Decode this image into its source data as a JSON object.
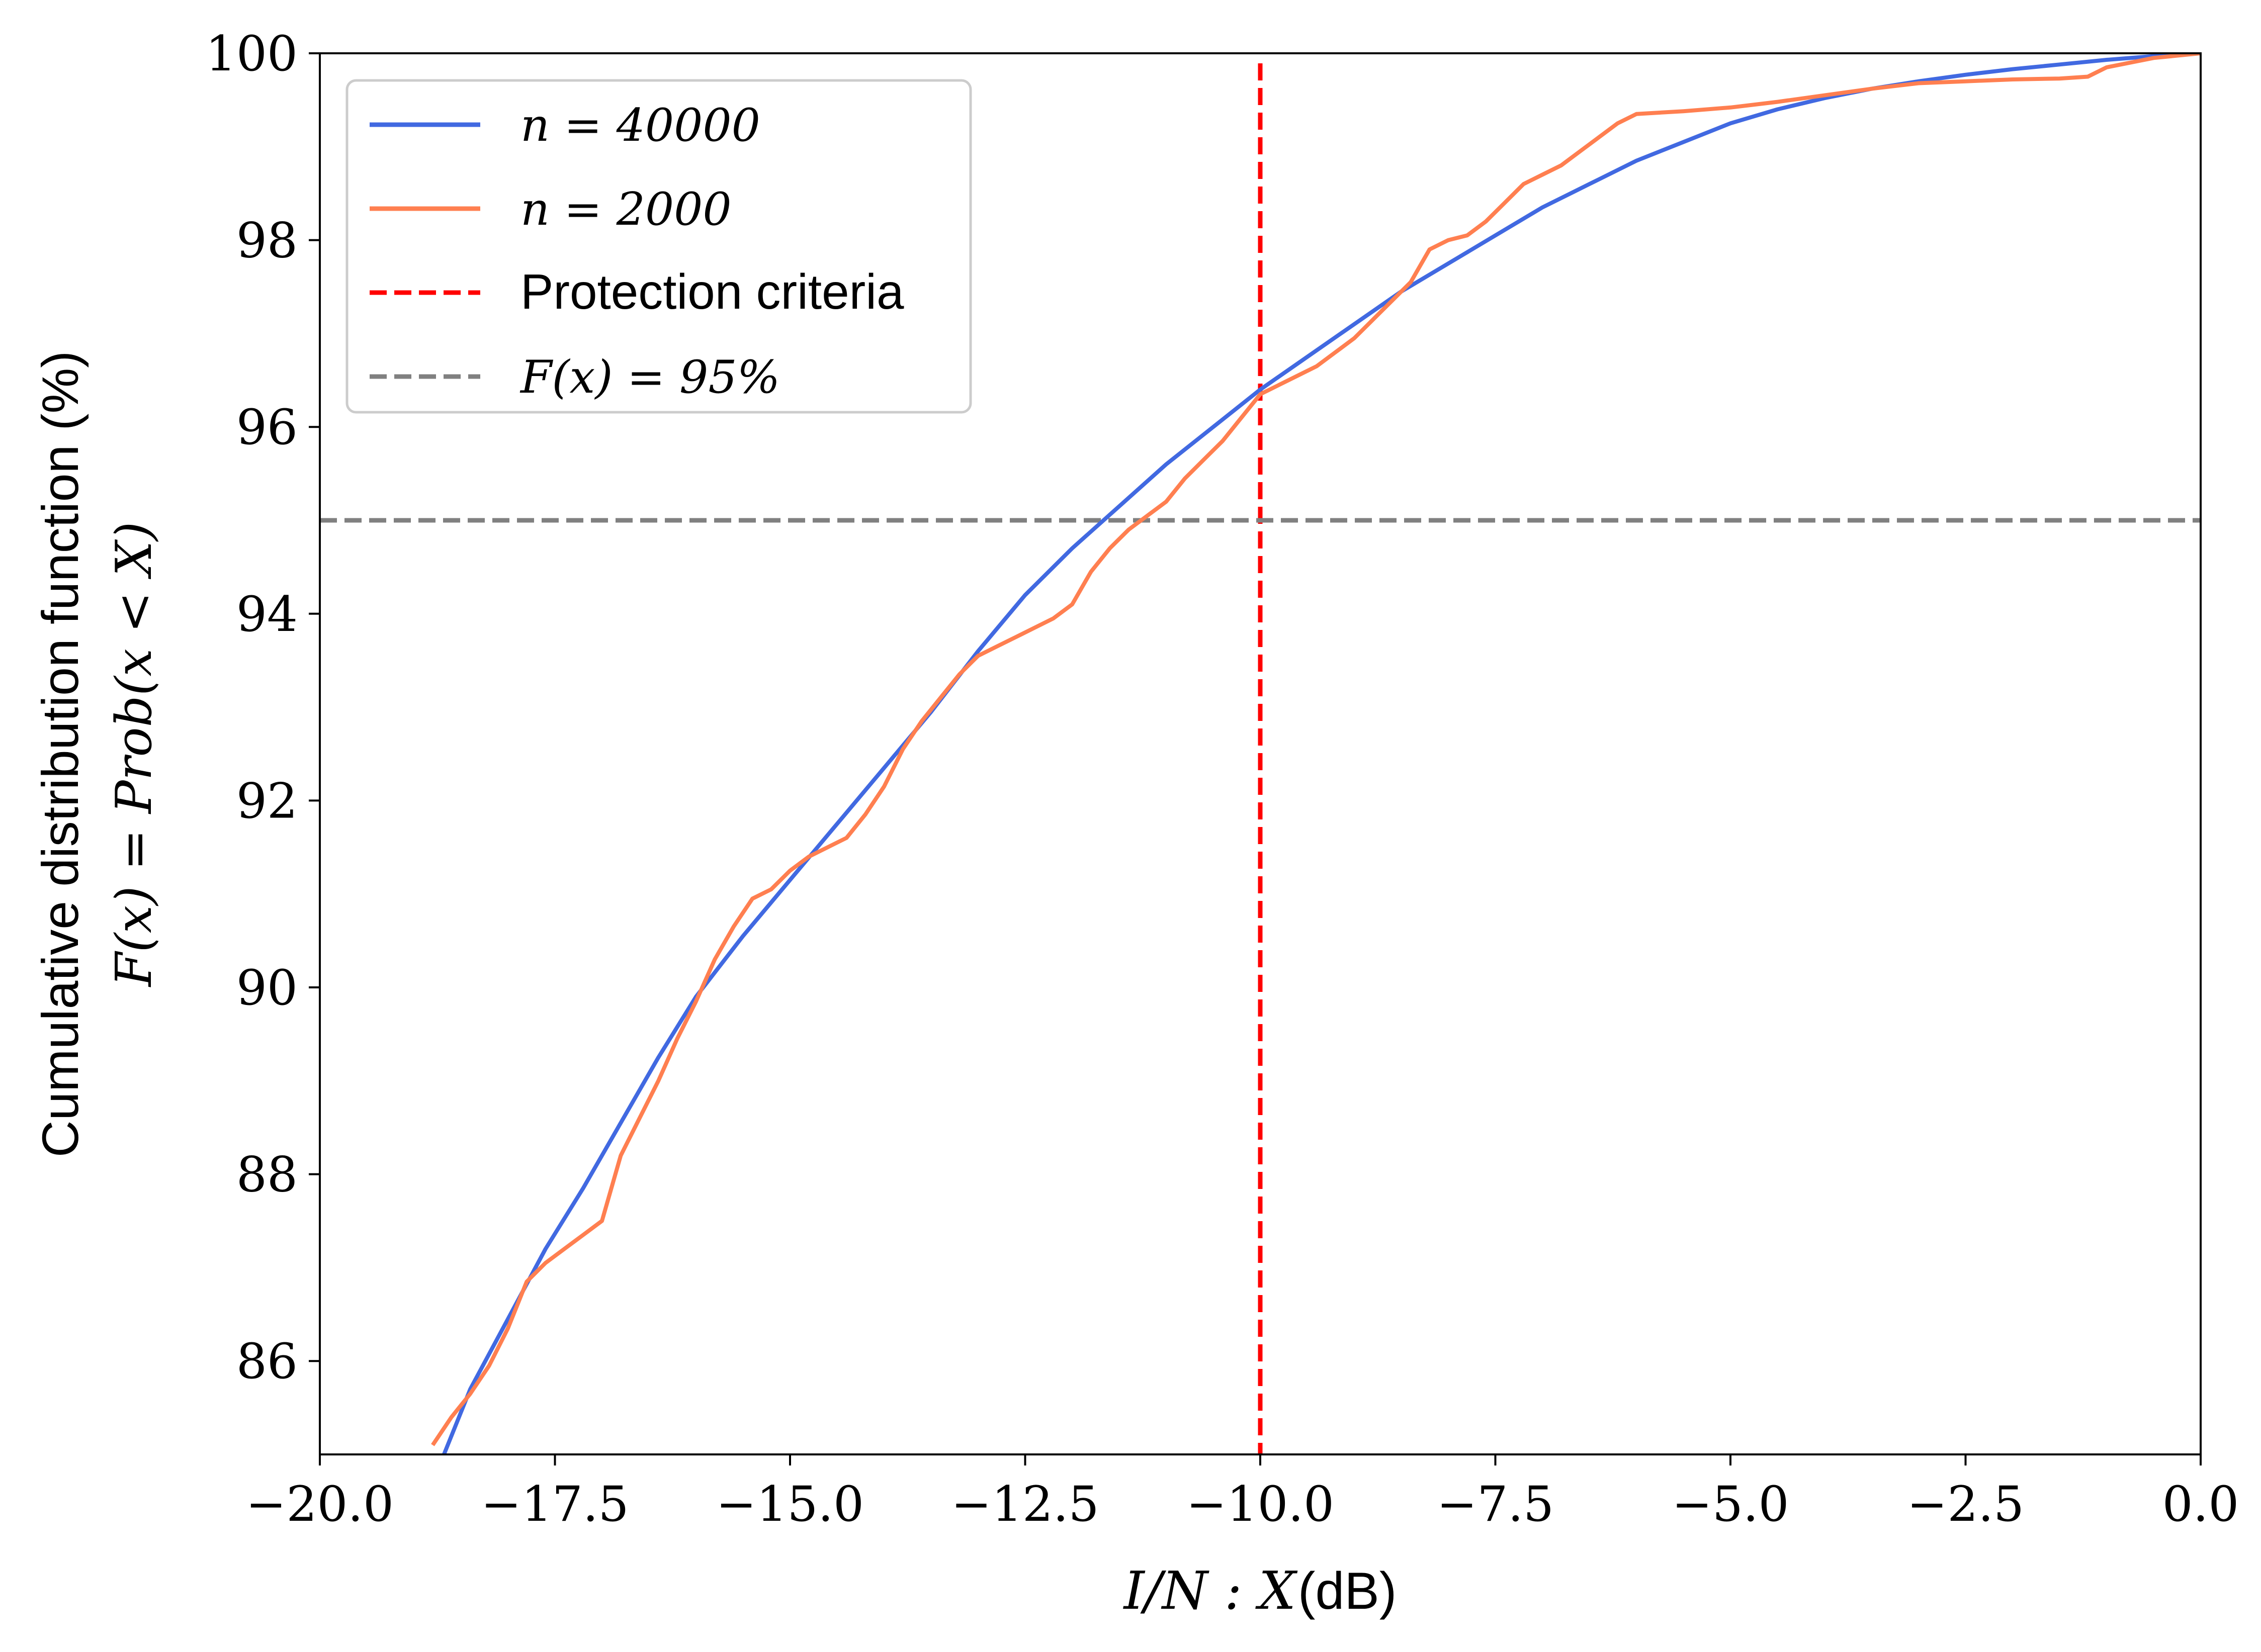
{
  "chart_data": {
    "type": "line",
    "title": "",
    "xlabel_math": "I/N : X",
    "xlabel_unit": "(dB)",
    "ylabel_line1": "Cumulative distribution function (%)",
    "ylabel_line2": "F(x) = Prob(x < X)",
    "xlim": [
      -20.0,
      0.0
    ],
    "ylim": [
      85,
      100
    ],
    "x_ticks": [
      -20.0,
      -17.5,
      -15.0,
      -12.5,
      -10.0,
      -7.5,
      -5.0,
      -2.5,
      0.0
    ],
    "x_tick_labels": [
      "−20.0",
      "−17.5",
      "−15.0",
      "−12.5",
      "−10.0",
      "−7.5",
      "−5.0",
      "−2.5",
      "0.0"
    ],
    "y_ticks": [
      86,
      88,
      90,
      92,
      94,
      96,
      98,
      100
    ],
    "y_tick_labels": [
      "86",
      "88",
      "90",
      "92",
      "94",
      "96",
      "98",
      "100"
    ],
    "grid": false,
    "legend_position": "top-left",
    "series": [
      {
        "name": "n = 40000",
        "color": "#4169e1",
        "style": "solid",
        "x": [
          -18.7,
          -18.4,
          -18.0,
          -17.6,
          -17.2,
          -16.8,
          -16.4,
          -16.0,
          -15.5,
          -15.0,
          -14.5,
          -14.0,
          -13.5,
          -13.0,
          -12.5,
          -12.0,
          -11.5,
          -11.0,
          -10.5,
          -10.0,
          -9.5,
          -9.0,
          -8.5,
          -8.0,
          -7.5,
          -7.0,
          -6.5,
          -6.0,
          -5.5,
          -5.0,
          -4.5,
          -4.0,
          -3.5,
          -3.0,
          -2.5,
          -2.0,
          -1.5,
          -1.0,
          -0.5,
          0.0
        ],
        "y": [
          84.95,
          85.7,
          86.45,
          87.2,
          87.85,
          88.55,
          89.25,
          89.9,
          90.55,
          91.15,
          91.75,
          92.35,
          92.95,
          93.6,
          94.2,
          94.7,
          95.15,
          95.6,
          96.0,
          96.4,
          96.75,
          97.1,
          97.45,
          97.75,
          98.05,
          98.35,
          98.6,
          98.85,
          99.05,
          99.25,
          99.4,
          99.52,
          99.62,
          99.7,
          99.77,
          99.83,
          99.88,
          99.93,
          99.97,
          100.0
        ]
      },
      {
        "name": "n = 2000",
        "color": "#ff7f50",
        "style": "solid",
        "x": [
          -18.8,
          -18.6,
          -18.4,
          -18.2,
          -18.0,
          -17.8,
          -17.6,
          -17.4,
          -17.2,
          -17.0,
          -16.8,
          -16.6,
          -16.4,
          -16.2,
          -16.0,
          -15.8,
          -15.6,
          -15.4,
          -15.2,
          -15.0,
          -14.8,
          -14.6,
          -14.4,
          -14.2,
          -14.0,
          -13.8,
          -13.6,
          -13.4,
          -13.2,
          -13.0,
          -12.8,
          -12.6,
          -12.4,
          -12.2,
          -12.0,
          -11.8,
          -11.6,
          -11.4,
          -11.2,
          -11.0,
          -10.8,
          -10.6,
          -10.4,
          -10.2,
          -10.0,
          -9.8,
          -9.6,
          -9.4,
          -9.2,
          -9.0,
          -8.8,
          -8.6,
          -8.4,
          -8.2,
          -8.0,
          -7.8,
          -7.6,
          -7.4,
          -7.2,
          -7.0,
          -6.8,
          -6.6,
          -6.4,
          -6.2,
          -6.0,
          -5.5,
          -5.0,
          -4.5,
          -4.0,
          -3.5,
          -3.0,
          -2.5,
          -2.0,
          -1.5,
          -1.2,
          -1.0,
          -0.5,
          0.0
        ],
        "y": [
          85.1,
          85.4,
          85.65,
          85.95,
          86.35,
          86.85,
          87.05,
          87.2,
          87.35,
          87.5,
          88.2,
          88.6,
          89.0,
          89.45,
          89.85,
          90.3,
          90.65,
          90.95,
          91.05,
          91.25,
          91.4,
          91.5,
          91.6,
          91.85,
          92.15,
          92.55,
          92.85,
          93.1,
          93.35,
          93.55,
          93.65,
          93.75,
          93.85,
          93.95,
          94.1,
          94.45,
          94.7,
          94.9,
          95.05,
          95.2,
          95.45,
          95.65,
          95.85,
          96.1,
          96.35,
          96.45,
          96.55,
          96.65,
          96.8,
          96.95,
          97.15,
          97.35,
          97.55,
          97.9,
          98.0,
          98.05,
          98.2,
          98.4,
          98.6,
          98.7,
          98.8,
          98.95,
          99.1,
          99.25,
          99.35,
          99.38,
          99.42,
          99.48,
          99.55,
          99.62,
          99.68,
          99.7,
          99.72,
          99.73,
          99.75,
          99.85,
          99.95,
          100.0
        ]
      }
    ],
    "reference_lines": [
      {
        "name": "Protection criteria",
        "orientation": "vertical",
        "value": -10.0,
        "color": "#ff0000",
        "style": "dashed"
      },
      {
        "name": "F(x) = 95%",
        "orientation": "horizontal",
        "value": 95,
        "color": "#808080",
        "style": "dashed"
      }
    ],
    "legend": [
      {
        "label": "n = 40000",
        "math": true,
        "color": "#4169e1",
        "style": "solid"
      },
      {
        "label": "n = 2000",
        "math": true,
        "color": "#ff7f50",
        "style": "solid"
      },
      {
        "label": "Protection criteria",
        "math": false,
        "color": "#ff0000",
        "style": "dashed"
      },
      {
        "label": "F(x) = 95%",
        "math": true,
        "color": "#808080",
        "style": "dashed"
      }
    ]
  }
}
